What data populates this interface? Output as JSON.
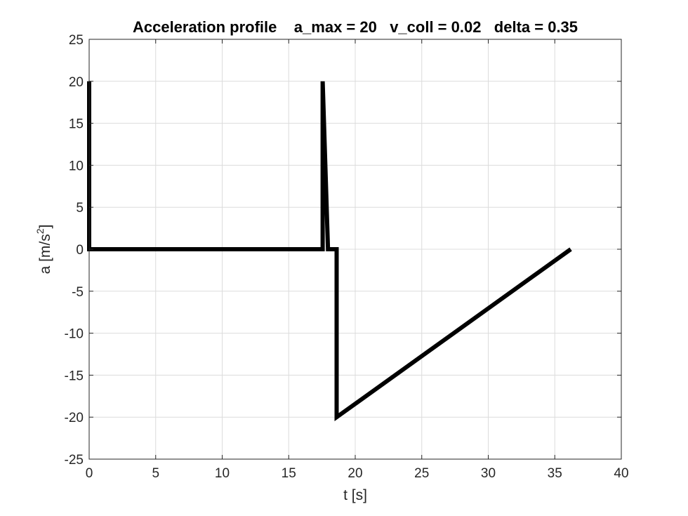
{
  "chart_data": {
    "type": "line",
    "title": "Acceleration profile    a_max = 20   v_coll = 0.02   delta = 0.35",
    "xlabel": "t [s]",
    "ylabel_base": "a [m/s",
    "ylabel_sup": "2",
    "ylabel_end": "]",
    "xlim": [
      0,
      40
    ],
    "ylim": [
      -25,
      25
    ],
    "xticks": [
      0,
      5,
      10,
      15,
      20,
      25,
      30,
      35,
      40
    ],
    "yticks": [
      -25,
      -20,
      -15,
      -10,
      -5,
      0,
      5,
      10,
      15,
      20,
      25
    ],
    "grid": true,
    "series": [
      {
        "color": "#000000",
        "x": [
          0,
          0,
          17.55,
          17.55,
          17.95,
          18.6,
          18.6,
          36.2
        ],
        "y": [
          20,
          0,
          0,
          20,
          0,
          0,
          -20,
          0
        ]
      }
    ]
  }
}
